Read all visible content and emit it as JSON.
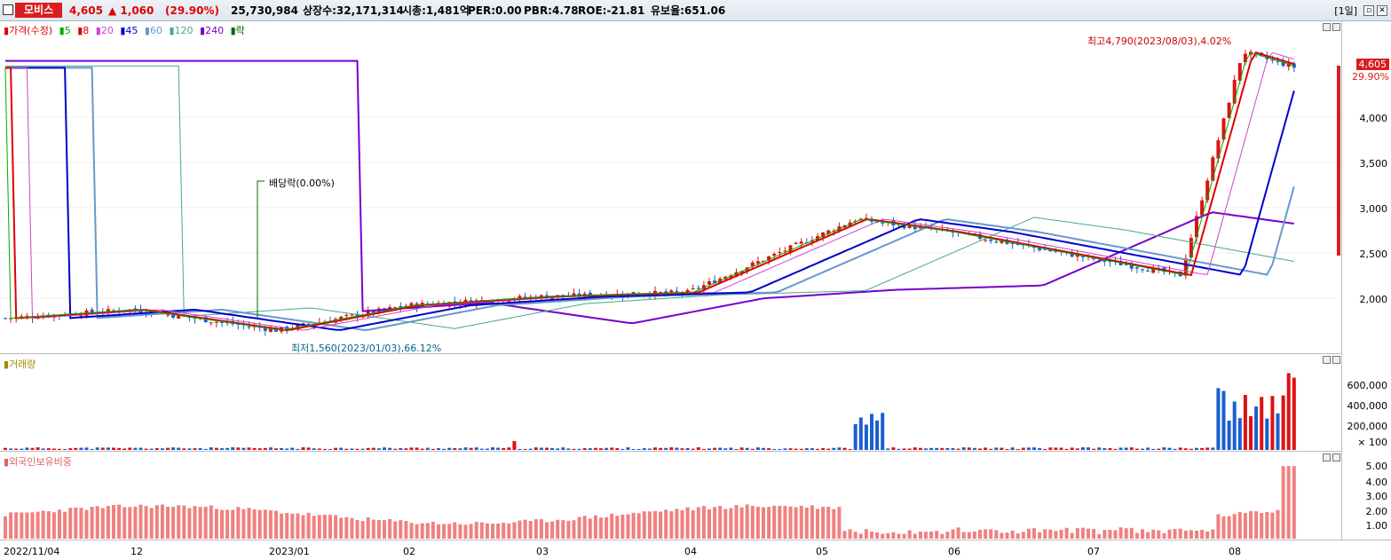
{
  "header": {
    "stock_name": "모비스",
    "price": "4,605",
    "change": "▲ 1,060",
    "change_pct": "(29.90%)",
    "volume": "25,730,984",
    "listed_shares": "상장수:32,171,314",
    "market_cap": "시총:1,481억",
    "per": "PER:0.00",
    "pbr": "PBR:4.78",
    "roe": "ROE:-21.81",
    "retention": "유보율:651.06",
    "period": "[1일]"
  },
  "price_pane": {
    "legend": [
      {
        "label": "가격(수정)",
        "color": "#e00000"
      },
      {
        "label": "5",
        "color": "#00aa00"
      },
      {
        "label": "8",
        "color": "#e00000"
      },
      {
        "label": "20",
        "color": "#cc44cc"
      },
      {
        "label": "45",
        "color": "#0000cc"
      },
      {
        "label": "60",
        "color": "#6699cc"
      },
      {
        "label": "120",
        "color": "#44aa88"
      },
      {
        "label": "240",
        "color": "#7700cc"
      },
      {
        "label": "락",
        "color": "#006600"
      }
    ],
    "high_label": "최고4,790(2023/08/03),4.02%",
    "low_label": "최저1,560(2023/01/03),66.12%",
    "dividend_label": "배당락(0.00%)",
    "limit_up_mark": "상",
    "axis_ticks": [
      "4,000",
      "3,500",
      "3,000",
      "2,500",
      "2,000"
    ],
    "current_price_tag": "4,605",
    "current_pct_tag": "29.90%"
  },
  "volume_pane": {
    "legend": "거래량",
    "axis_ticks": [
      "600,000",
      "400,000",
      "200,000"
    ],
    "unit": "× 100"
  },
  "foreign_pane": {
    "legend": "외국인보유비중",
    "axis_ticks": [
      "5.00",
      "4.00",
      "3.00",
      "2.00",
      "1.00"
    ]
  },
  "x_axis": [
    "2022/11/04",
    "12",
    "2023/01",
    "02",
    "03",
    "04",
    "05",
    "06",
    "07",
    "08"
  ],
  "chart_data": {
    "type": "candlestick",
    "title": "",
    "period": "daily",
    "x_range": [
      "2022/11/04",
      "2023/08/11"
    ],
    "price_ylim": [
      1500,
      5000
    ],
    "price_points": [
      {
        "x": "2022/11/04",
        "close": 1700
      },
      {
        "x": "2022/12",
        "close": 1800
      },
      {
        "x": "2023/01/03",
        "close": 1560
      },
      {
        "x": "2023/02",
        "close": 1850
      },
      {
        "x": "2023/03",
        "close": 1950
      },
      {
        "x": "2023/04",
        "close": 2000
      },
      {
        "x": "2023/05",
        "close": 2850
      },
      {
        "x": "2023/06",
        "close": 2700
      },
      {
        "x": "2023/07",
        "close": 2200
      },
      {
        "x": "2023/08/03",
        "close": 4790
      },
      {
        "x": "2023/08/11",
        "close": 4605
      }
    ],
    "volume_ylim": [
      0,
      800000
    ],
    "foreign_ratio_ylim": [
      0,
      5.5
    ],
    "foreign_ratio_latest": 5.0
  }
}
